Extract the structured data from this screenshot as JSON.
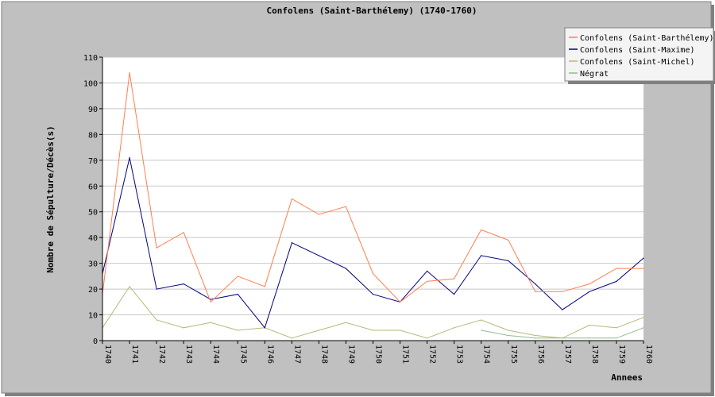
{
  "chart_data": {
    "type": "line",
    "title": "Confolens (Saint-Barthélemy) (1740-1760)",
    "xlabel": "Annees",
    "ylabel": "Nombre de Sépulture/Décès(s)",
    "ylim": [
      0,
      110
    ],
    "yticks": [
      0,
      10,
      20,
      30,
      40,
      50,
      60,
      70,
      80,
      90,
      100,
      110
    ],
    "grid": true,
    "legend_position": "top-right",
    "categories": [
      "1740",
      "1741",
      "1742",
      "1743",
      "1744",
      "1745",
      "1746",
      "1747",
      "1748",
      "1749",
      "1750",
      "1751",
      "1752",
      "1753",
      "1754",
      "1755",
      "1756",
      "1757",
      "1758",
      "1759",
      "1760"
    ],
    "series": [
      {
        "name": "Confolens (Saint-Barthélemy)",
        "color": "#ff7f50",
        "values": [
          18,
          104,
          36,
          42,
          15,
          25,
          21,
          55,
          49,
          52,
          26,
          15,
          23,
          24,
          43,
          39,
          19,
          19,
          22,
          28,
          28
        ]
      },
      {
        "name": "Confolens (Saint-Maxime)",
        "color": "#000080",
        "values": [
          26,
          71,
          20,
          22,
          16,
          18,
          5,
          38,
          33,
          28,
          18,
          15,
          27,
          18,
          33,
          31,
          22,
          12,
          19,
          23,
          32
        ]
      },
      {
        "name": "Confolens (Saint-Michel)",
        "color": "#b8b878",
        "values": [
          5,
          21,
          8,
          5,
          7,
          4,
          5,
          1,
          4,
          7,
          4,
          4,
          1,
          5,
          8,
          4,
          2,
          1,
          6,
          5,
          9
        ]
      },
      {
        "name": "Négrat",
        "color": "#8fbc8f",
        "values": [
          null,
          null,
          null,
          null,
          null,
          null,
          null,
          null,
          null,
          null,
          null,
          null,
          null,
          null,
          4,
          2,
          1,
          1,
          1,
          1,
          5
        ]
      }
    ]
  }
}
